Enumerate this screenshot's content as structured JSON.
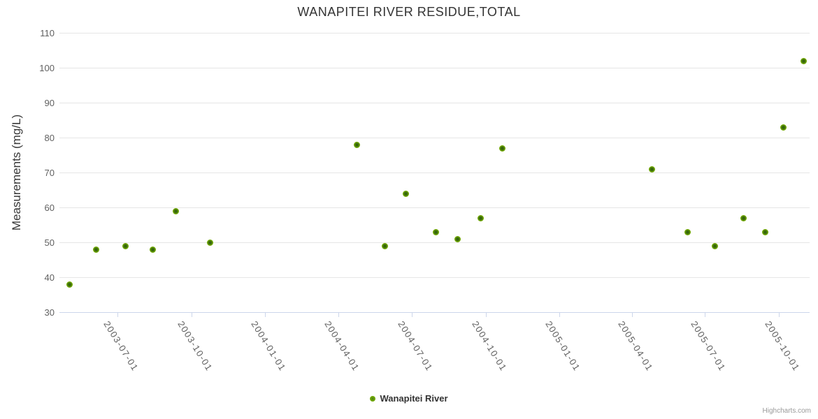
{
  "title": "WANAPITEI RIVER RESIDUE,TOTAL",
  "legend": {
    "series_label": "Wanapitei River"
  },
  "credits_label": "Highcharts.com",
  "colors": {
    "accent": "#7cb400",
    "grid": "#e6e6e6",
    "axis_line": "#ccd6eb",
    "title_text": "#333333",
    "label_text": "#606060",
    "credits_text": "#999999"
  },
  "chart_data": {
    "type": "scatter",
    "title": "WANAPITEI RIVER RESIDUE,TOTAL",
    "xlabel": "",
    "ylabel": "Measurements (mg/L)",
    "ylim": [
      30,
      110
    ],
    "yticks": [
      30,
      40,
      50,
      60,
      70,
      80,
      90,
      100,
      110
    ],
    "xmin": "2003-04-20",
    "xmax": "2005-11-08",
    "xticks": [
      "2003-07-01",
      "2003-10-01",
      "2004-01-01",
      "2004-04-01",
      "2004-07-01",
      "2004-10-01",
      "2005-01-01",
      "2005-04-01",
      "2005-07-01",
      "2005-10-01"
    ],
    "grid": true,
    "legend_position": "bottom-center",
    "series": [
      {
        "name": "Wanapitei River",
        "color": "#7cb400",
        "points": [
          {
            "x": "2003-05-03",
            "y": 38
          },
          {
            "x": "2003-06-05",
            "y": 48
          },
          {
            "x": "2003-07-11",
            "y": 49
          },
          {
            "x": "2003-08-14",
            "y": 48
          },
          {
            "x": "2003-09-12",
            "y": 59
          },
          {
            "x": "2003-10-24",
            "y": 50
          },
          {
            "x": "2004-04-24",
            "y": 78
          },
          {
            "x": "2004-05-29",
            "y": 49
          },
          {
            "x": "2004-06-24",
            "y": 64
          },
          {
            "x": "2004-07-31",
            "y": 53
          },
          {
            "x": "2004-08-27",
            "y": 51
          },
          {
            "x": "2004-09-25",
            "y": 57
          },
          {
            "x": "2004-10-22",
            "y": 77
          },
          {
            "x": "2005-04-26",
            "y": 71
          },
          {
            "x": "2005-06-09",
            "y": 53
          },
          {
            "x": "2005-07-13",
            "y": 49
          },
          {
            "x": "2005-08-18",
            "y": 57
          },
          {
            "x": "2005-09-14",
            "y": 53
          },
          {
            "x": "2005-10-06",
            "y": 83
          },
          {
            "x": "2005-11-01",
            "y": 102
          }
        ]
      }
    ]
  }
}
